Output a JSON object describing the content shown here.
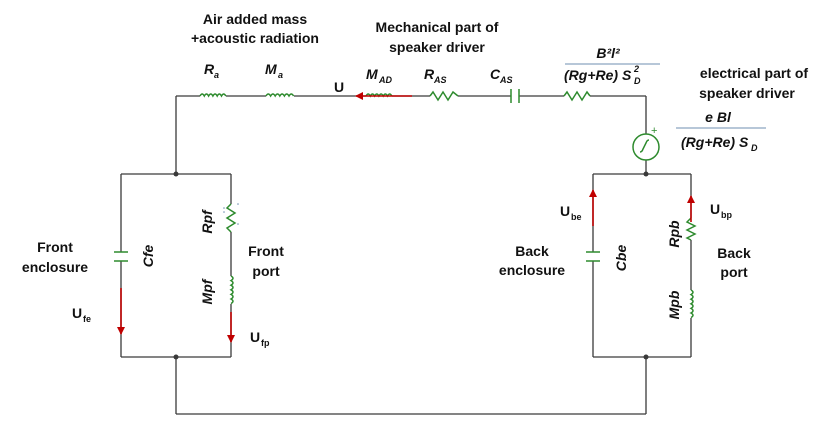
{
  "colors": {
    "wire": "#3a3a3a",
    "component_green": "#2e8b2e",
    "arrow_red": "#c00000",
    "fraction_line": "#6f8fb0"
  },
  "labels": {
    "air_added_mass_line1": "Air added mass",
    "air_added_mass_line2": "+acoustic radiation",
    "mech_part_line1": "Mechanical part of",
    "mech_part_line2": "speaker driver",
    "elec_part_line1": "electrical part of",
    "elec_part_line2": "speaker driver",
    "front_enclosure_line1": "Front",
    "front_enclosure_line2": "enclosure",
    "front_port_line1": "Front",
    "front_port_line2": "port",
    "back_enclosure_line1": "Back",
    "back_enclosure_line2": "enclosure",
    "back_port_line1": "Back",
    "back_port_line2": "port"
  },
  "components": {
    "ra": {
      "main": "R",
      "sub": "a"
    },
    "ma": {
      "main": "M",
      "sub": "a"
    },
    "mad": {
      "main": "M",
      "sub": "AD"
    },
    "ras": {
      "main": "R",
      "sub": "AS"
    },
    "cas": {
      "main": "C",
      "sub": "AS"
    },
    "cfe": "Cfe",
    "rpf": "Rpf",
    "mpf": "Mpf",
    "cbe": "Cbe",
    "rpb": "Rpb",
    "mpb": "Mpb"
  },
  "fractions": {
    "resistor": {
      "numerator": "B²l²",
      "denominator": "(Rg+Re) S",
      "den_sub": "D",
      "den_sup": "2"
    },
    "source": {
      "numerator": "e Bl",
      "denominator": "(Rg+Re) S",
      "den_sub": "D"
    }
  },
  "source_plus": "+",
  "velocities": {
    "u_main": "U",
    "ufe": {
      "main": "U",
      "sub": "fe"
    },
    "ufp": {
      "main": "U",
      "sub": "fp"
    },
    "ube": {
      "main": "U",
      "sub": "be"
    },
    "ubp": {
      "main": "U",
      "sub": "bp"
    }
  }
}
